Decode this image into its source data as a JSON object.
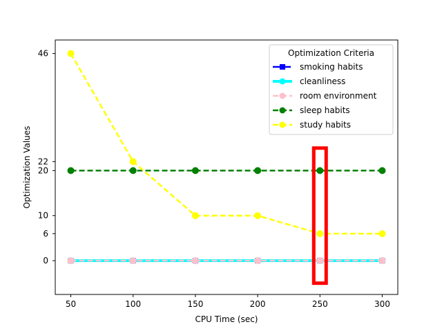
{
  "chart_data": {
    "type": "line",
    "title": "",
    "xlabel": "CPU Time (sec)",
    "ylabel": "Optimization Values",
    "x": [
      50,
      100,
      150,
      200,
      250,
      300
    ],
    "xticks": [
      "50",
      "100",
      "150",
      "200",
      "250",
      "300"
    ],
    "yticks": [
      "0",
      "6",
      "10",
      "20",
      "22",
      "46"
    ],
    "ytick_values": [
      0,
      6,
      10,
      20,
      22,
      46
    ],
    "xlim": [
      37.5,
      312.5
    ],
    "ylim": [
      -7.5,
      49
    ],
    "grid": false,
    "legend": {
      "title": "Optimization Criteria",
      "placement": "top-right"
    },
    "series": [
      {
        "name": "smoking habits",
        "values": [
          0,
          0,
          0,
          0,
          0,
          0
        ],
        "color": "#0000ff",
        "style": "dashed-square"
      },
      {
        "name": "cleanliness",
        "values": [
          0,
          0,
          0,
          0,
          0,
          0
        ],
        "color": "#00ffff",
        "style": "solid-thick"
      },
      {
        "name": "room environment",
        "values": [
          0,
          0,
          0,
          0,
          0,
          0
        ],
        "color": "#ffc0cb",
        "style": "dashed"
      },
      {
        "name": "sleep habits",
        "values": [
          20,
          20,
          20,
          20,
          20,
          20
        ],
        "color": "#008000",
        "style": "dashed"
      },
      {
        "name": "study habits",
        "values": [
          46,
          22,
          10,
          10,
          6,
          6
        ],
        "color": "#ffff00",
        "style": "dashed"
      }
    ],
    "highlight": {
      "x": 250,
      "y_range": [
        -5,
        25
      ],
      "color": "#ff0000"
    }
  }
}
